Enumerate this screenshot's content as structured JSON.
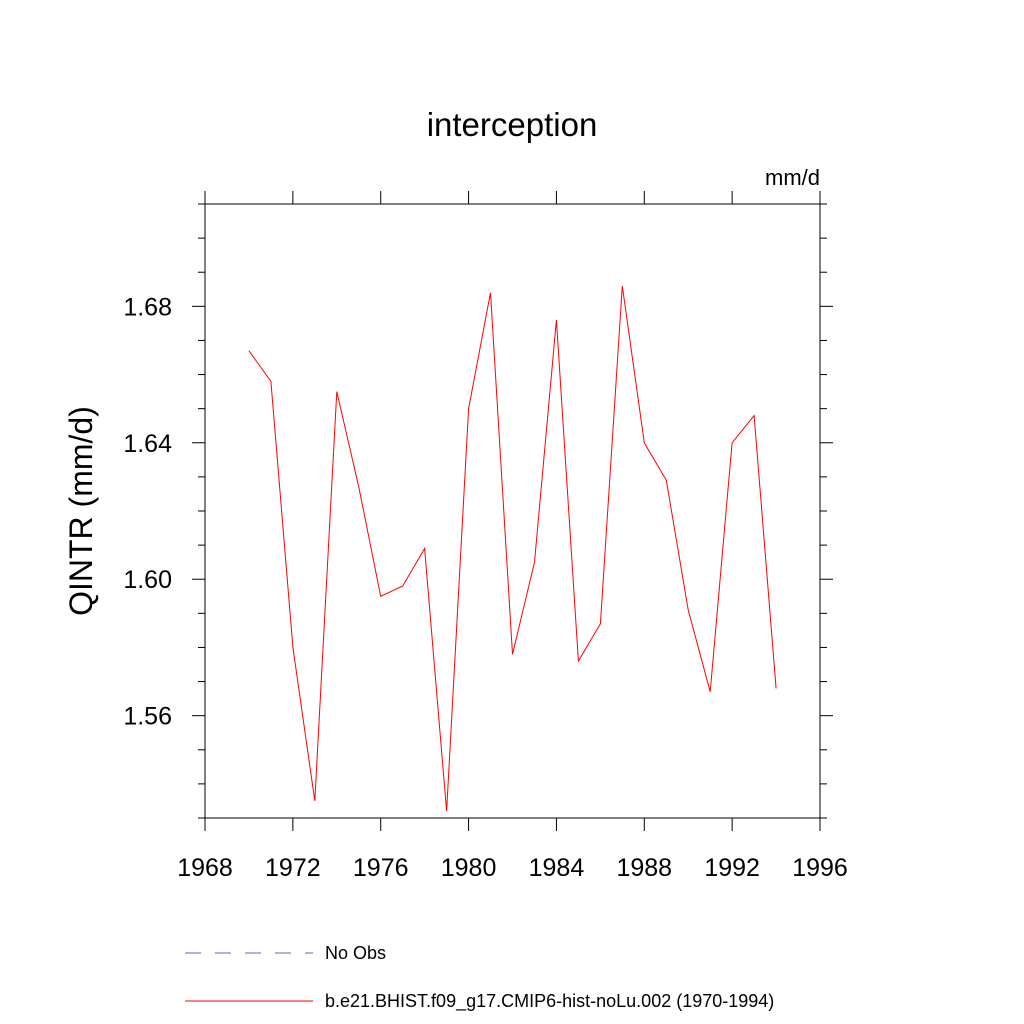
{
  "chart_data": {
    "type": "line",
    "title": "interception",
    "units_label": "mm/d",
    "ylabel": "QINTR  (mm/d)",
    "xlabel": "",
    "xlim": [
      1968,
      1996
    ],
    "ylim": [
      1.53,
      1.71
    ],
    "x_ticks": [
      1968,
      1972,
      1976,
      1980,
      1984,
      1988,
      1992,
      1996
    ],
    "x_tick_labels": [
      "1968",
      "1972",
      "1976",
      "1980",
      "1984",
      "1988",
      "1992",
      "1996"
    ],
    "y_ticks": [
      1.56,
      1.6,
      1.64,
      1.68
    ],
    "y_tick_labels": [
      "1.56",
      "1.60",
      "1.64",
      "1.68"
    ],
    "grid": false,
    "legend_position": "bottom",
    "series": [
      {
        "name": "b.e21.BHIST.f09_g17.CMIP6-hist-noLu.002 (1970-1994)",
        "color": "#ff0000",
        "style": "solid",
        "x": [
          1970,
          1971,
          1972,
          1973,
          1974,
          1975,
          1976,
          1977,
          1978,
          1979,
          1980,
          1981,
          1982,
          1983,
          1984,
          1985,
          1986,
          1987,
          1988,
          1989,
          1990,
          1991,
          1992,
          1993,
          1994
        ],
        "y": [
          1.667,
          1.658,
          1.58,
          1.535,
          1.655,
          1.627,
          1.595,
          1.598,
          1.609,
          1.532,
          1.65,
          1.684,
          1.578,
          1.605,
          1.676,
          1.576,
          1.587,
          1.686,
          1.64,
          1.629,
          1.591,
          1.567,
          1.64,
          1.648,
          1.568
        ]
      }
    ],
    "legend": [
      {
        "label": "No Obs",
        "color": "#6666bb",
        "style": "dashed"
      },
      {
        "label": "b.e21.BHIST.f09_g17.CMIP6-hist-noLu.002 (1970-1994)",
        "color": "#ff0000",
        "style": "solid"
      }
    ]
  }
}
